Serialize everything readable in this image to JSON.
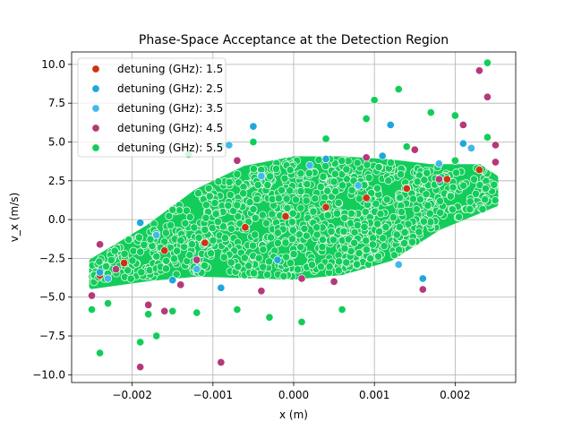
{
  "chart_data": {
    "type": "scatter",
    "title": "Phase-Space Acceptance at the Detection Region",
    "xlabel": "x (m)",
    "ylabel": "v_x (m/s)",
    "xlim": [
      -0.00275,
      0.00275
    ],
    "ylim": [
      -10.5,
      10.8
    ],
    "grid": true,
    "legend_position": "top-left",
    "x_ticks": [
      {
        "value": -0.002,
        "label": "−0.002"
      },
      {
        "value": -0.001,
        "label": "−0.001"
      },
      {
        "value": 0.0,
        "label": "0.000"
      },
      {
        "value": 0.001,
        "label": "0.001"
      },
      {
        "value": 0.002,
        "label": "0.002"
      }
    ],
    "y_ticks": [
      {
        "value": -10.0,
        "label": "−10.0"
      },
      {
        "value": -7.5,
        "label": "−7.5"
      },
      {
        "value": -5.0,
        "label": "−5.0"
      },
      {
        "value": -2.5,
        "label": "−2.5"
      },
      {
        "value": 0.0,
        "label": "0.0"
      },
      {
        "value": 2.5,
        "label": "2.5"
      },
      {
        "value": 5.0,
        "label": "5.0"
      },
      {
        "value": 7.5,
        "label": "7.5"
      },
      {
        "value": 10.0,
        "label": "10.0"
      }
    ],
    "series": [
      {
        "name": "detuning (GHz): 1.5",
        "color": "#cc3311",
        "points": [
          [
            -0.0024,
            -3.6
          ],
          [
            -0.0021,
            -2.8
          ],
          [
            -0.0016,
            -2.0
          ],
          [
            -0.0011,
            -1.5
          ],
          [
            -0.0006,
            -0.5
          ],
          [
            -0.0001,
            0.2
          ],
          [
            0.0004,
            0.8
          ],
          [
            0.0009,
            1.4
          ],
          [
            0.0014,
            2.0
          ],
          [
            0.0019,
            2.6
          ],
          [
            0.0023,
            3.2
          ]
        ]
      },
      {
        "name": "detuning (GHz): 2.5",
        "color": "#1fa7dc",
        "points": [
          [
            -0.0024,
            -3.4
          ],
          [
            -0.0019,
            -0.2
          ],
          [
            -0.0015,
            -3.9
          ],
          [
            -0.0009,
            -4.4
          ],
          [
            -0.0005,
            6.0
          ],
          [
            0.0004,
            3.9
          ],
          [
            0.0011,
            4.1
          ],
          [
            0.0012,
            6.1
          ],
          [
            0.0016,
            -3.8
          ],
          [
            0.0021,
            4.9
          ],
          [
            -0.0002,
            -2.6
          ]
        ]
      },
      {
        "name": "detuning (GHz): 3.5",
        "color": "#41b8e8",
        "points": [
          [
            -0.0023,
            -3.8
          ],
          [
            -0.0017,
            -1.0
          ],
          [
            -0.0012,
            -3.2
          ],
          [
            -0.0004,
            2.8
          ],
          [
            0.0002,
            3.5
          ],
          [
            0.0008,
            2.2
          ],
          [
            0.0013,
            -2.9
          ],
          [
            0.0018,
            3.6
          ],
          [
            0.0022,
            4.6
          ],
          [
            -0.0008,
            4.8
          ]
        ]
      },
      {
        "name": "detuning (GHz): 4.5",
        "color": "#b5397a",
        "points": [
          [
            -0.0025,
            -4.9
          ],
          [
            -0.0024,
            -1.6
          ],
          [
            -0.0022,
            -3.2
          ],
          [
            -0.0018,
            -5.5
          ],
          [
            -0.0019,
            -9.5
          ],
          [
            -0.0016,
            -5.9
          ],
          [
            -0.0014,
            -4.2
          ],
          [
            -0.0012,
            -2.6
          ],
          [
            -0.0009,
            -9.2
          ],
          [
            -0.0007,
            3.8
          ],
          [
            -0.0004,
            -4.6
          ],
          [
            0.0001,
            -3.8
          ],
          [
            0.0005,
            -4.0
          ],
          [
            0.0009,
            4.0
          ],
          [
            0.0015,
            4.5
          ],
          [
            0.0018,
            2.6
          ],
          [
            0.0023,
            9.6
          ],
          [
            0.0024,
            7.9
          ],
          [
            0.0025,
            4.8
          ],
          [
            0.0021,
            6.1
          ],
          [
            0.0025,
            3.7
          ],
          [
            0.0016,
            -4.5
          ]
        ]
      },
      {
        "name": "detuning (GHz): 5.5",
        "color": "#13cd5a",
        "points": [
          [
            -0.0025,
            -5.8
          ],
          [
            -0.0024,
            -8.6
          ],
          [
            -0.0023,
            -5.4
          ],
          [
            -0.0019,
            -7.9
          ],
          [
            -0.0018,
            -6.1
          ],
          [
            -0.0017,
            -7.5
          ],
          [
            -0.0015,
            -5.9
          ],
          [
            -0.0012,
            -6.0
          ],
          [
            -0.0007,
            -5.8
          ],
          [
            -0.0003,
            -6.3
          ],
          [
            0.0001,
            -6.6
          ],
          [
            0.0006,
            -5.8
          ],
          [
            0.0009,
            6.5
          ],
          [
            0.001,
            7.7
          ],
          [
            0.0013,
            8.4
          ],
          [
            0.0017,
            6.9
          ],
          [
            0.002,
            3.8
          ],
          [
            0.002,
            6.7
          ],
          [
            0.0024,
            10.1
          ],
          [
            0.0024,
            5.3
          ],
          [
            -0.0009,
            4.8
          ],
          [
            -0.0005,
            5.0
          ],
          [
            0.0004,
            5.2
          ],
          [
            0.0014,
            4.7
          ],
          [
            -0.0013,
            4.2
          ]
        ]
      }
    ],
    "dense_region": {
      "series": "detuning (GHz): 5.5",
      "vertices": [
        [
          -0.0025,
          -4.3
        ],
        [
          -0.0025,
          -2.7
        ],
        [
          -0.0018,
          -0.5
        ],
        [
          -0.0012,
          1.8
        ],
        [
          -0.0006,
          3.3
        ],
        [
          0.0,
          3.9
        ],
        [
          0.0006,
          3.9
        ],
        [
          0.0012,
          3.7
        ],
        [
          0.0017,
          3.4
        ],
        [
          0.0023,
          3.4
        ],
        [
          0.0025,
          2.7
        ],
        [
          0.0025,
          1.0
        ],
        [
          0.0018,
          -0.5
        ],
        [
          0.0012,
          -2.5
        ],
        [
          0.0006,
          -3.4
        ],
        [
          0.0,
          -3.7
        ],
        [
          -0.0006,
          -3.6
        ],
        [
          -0.0012,
          -3.5
        ],
        [
          -0.0018,
          -3.8
        ]
      ]
    }
  }
}
